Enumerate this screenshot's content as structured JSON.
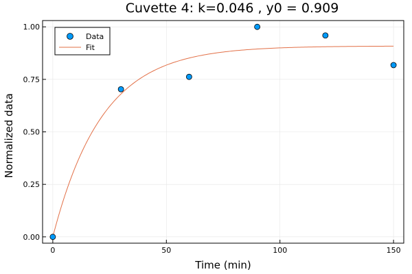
{
  "chart_data": {
    "type": "scatter",
    "title": "Cuvette 4: k=0.046 , y0 = 0.909",
    "xlabel": "Time (min)",
    "ylabel": "Normalized data",
    "xlim": [
      -4.5,
      154.5
    ],
    "ylim": [
      -0.03,
      1.03
    ],
    "x_ticks": [
      0,
      50,
      100,
      150
    ],
    "y_ticks": [
      0.0,
      0.25,
      0.5,
      0.75,
      1.0
    ],
    "x_tick_labels": [
      "0",
      "50",
      "100",
      "150"
    ],
    "y_tick_labels": [
      "0.00",
      "0.25",
      "0.50",
      "0.75",
      "1.00"
    ],
    "grid": true,
    "legend_position": "top-left",
    "series": [
      {
        "name": "Data",
        "kind": "scatter",
        "color": "#009AFA",
        "x": [
          0,
          30,
          60,
          90,
          120,
          150
        ],
        "y": [
          0.0,
          0.703,
          0.762,
          1.0,
          0.959,
          0.818
        ]
      },
      {
        "name": "Fit",
        "kind": "line",
        "color": "#E26F46",
        "model": "y0*(1-exp(-k*x))",
        "k": 0.046,
        "y0": 0.909,
        "x_range": [
          0,
          150
        ]
      }
    ]
  }
}
